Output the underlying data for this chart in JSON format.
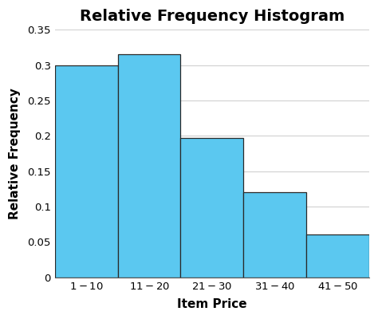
{
  "title": "Relative Frequency Histogram",
  "xlabel": "Item Price",
  "ylabel": "Relative Frequency",
  "categories": [
    "$1 - $10",
    "$11 - $20",
    "$21 - $30",
    "$31 - $40",
    "$41 - $50"
  ],
  "values": [
    0.3,
    0.315,
    0.197,
    0.12,
    0.06
  ],
  "bar_color": "#5BC8F0",
  "bar_edge_color": "#2a2a2a",
  "ylim": [
    0,
    0.35
  ],
  "yticks": [
    0,
    0.05,
    0.1,
    0.15,
    0.2,
    0.25,
    0.3,
    0.35
  ],
  "title_fontsize": 14,
  "label_fontsize": 11,
  "tick_fontsize": 9.5,
  "background_color": "#ffffff",
  "grid_color": "#d0d0d0"
}
